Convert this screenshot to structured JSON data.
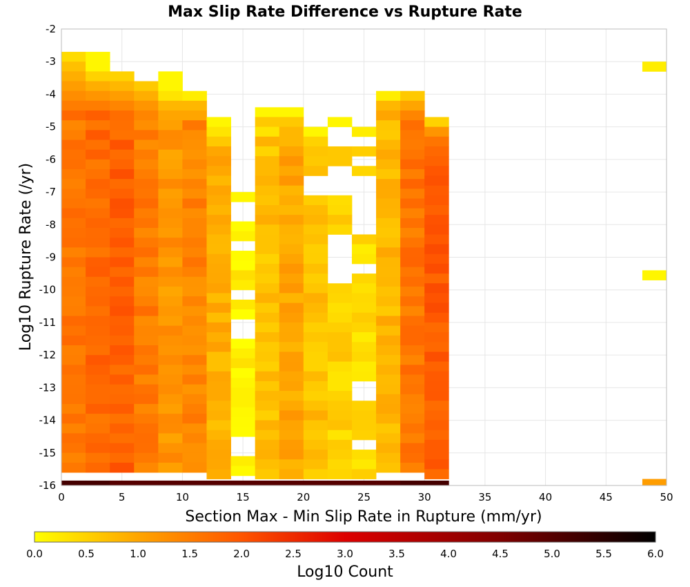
{
  "chart_data": {
    "type": "heatmap",
    "title": "Max Slip Rate Difference vs Rupture Rate",
    "xlabel": "Section Max - Min Slip Rate in Rupture (mm/yr)",
    "ylabel": "Log10 Rupture Rate (/yr)",
    "xlim": [
      0,
      50
    ],
    "ylim": [
      -16,
      -2
    ],
    "grid": true,
    "x_ticks": [
      "0",
      "5",
      "10",
      "15",
      "20",
      "25",
      "30",
      "35",
      "40",
      "45",
      "50"
    ],
    "y_ticks": [
      "-2",
      "-3",
      "-4",
      "-5",
      "-6",
      "-7",
      "-8",
      "-9",
      "-10",
      "-11",
      "-12",
      "-13",
      "-14",
      "-15",
      "-16"
    ],
    "x_bin_width": 2,
    "y_bin_height": 0.3,
    "colorbar": {
      "label": "Log10 Count",
      "range": [
        0,
        6
      ],
      "ticks": [
        "0.0",
        "0.5",
        "1.0",
        "1.5",
        "2.0",
        "2.5",
        "3.0",
        "3.5",
        "4.0",
        "4.5",
        "5.0",
        "5.5",
        "6.0"
      ],
      "stops": [
        {
          "v": 0.0,
          "color": "#ffff00"
        },
        {
          "v": 1.0,
          "color": "#ffa500"
        },
        {
          "v": 2.0,
          "color": "#ff5500"
        },
        {
          "v": 3.0,
          "color": "#dd0000"
        },
        {
          "v": 4.5,
          "color": "#800000"
        },
        {
          "v": 6.0,
          "color": "#000000"
        }
      ]
    },
    "columns": [
      {
        "x0": 0,
        "y_top": -2.7,
        "lows": [],
        "base": 1.55,
        "top": [
          0.4,
          0.7,
          0.9,
          1.1,
          1.3,
          1.5
        ],
        "bottom": 5.2
      },
      {
        "x0": 2,
        "y_top": -2.7,
        "lows": [],
        "base": 1.75,
        "top": [
          0.1,
          0.1,
          0.5,
          0.9,
          1.2,
          1.5
        ],
        "bottom": 5.2
      },
      {
        "x0": 4,
        "y_top": -3.3,
        "lows": [],
        "base": 1.85,
        "top": [
          0.5,
          0.8,
          1.1,
          1.4,
          1.7
        ],
        "bottom": 5.0
      },
      {
        "x0": 6,
        "y_top": -3.6,
        "lows": [],
        "base": 1.5,
        "top": [
          0.6,
          0.9,
          1.2,
          1.4
        ],
        "bottom": 5.0
      },
      {
        "x0": 8,
        "y_top": -3.3,
        "lows": [],
        "base": 1.2,
        "top": [
          0.1,
          0.1,
          0.3,
          0.8,
          1.0
        ],
        "bottom": 5.0
      },
      {
        "x0": 10,
        "y_top": -3.9,
        "lows": [],
        "base": 1.4,
        "top": [
          0.2,
          0.8,
          1.0
        ],
        "bottom": 5.0
      },
      {
        "x0": 12,
        "y_top": -4.7,
        "lows": [],
        "base": 0.9,
        "top": [
          0.1,
          0.3,
          0.6
        ],
        "bottom": 5.0
      },
      {
        "x0": 14,
        "y_top": -7.0,
        "lows": [
          [
            -7.3,
            -7.9
          ],
          [
            -8.5,
            -8.9
          ],
          [
            -10.0,
            -10.3
          ],
          [
            -11.0,
            -11.4
          ],
          [
            -13.3,
            -13.4
          ],
          [
            -14.5,
            -15.2
          ]
        ],
        "base": 0.2,
        "top": [
          0.1
        ],
        "bottom": 5.0
      },
      {
        "x0": 16,
        "y_top": -4.4,
        "lows": [],
        "base": 0.7,
        "top": [
          0.1,
          0.6,
          0.3
        ],
        "bottom": 5.0
      },
      {
        "x0": 18,
        "y_top": -4.4,
        "lows": [],
        "base": 1.0,
        "top": [
          0.1,
          0.6,
          0.8
        ],
        "bottom": 5.0
      },
      {
        "x0": 20,
        "y_top": -5.0,
        "lows": [
          [
            -6.4,
            -7.0
          ]
        ],
        "base": 0.7,
        "top": [
          0.1,
          0.5
        ],
        "bottom": 5.0
      },
      {
        "x0": 22,
        "y_top": -4.7,
        "lows": [
          [
            -5.0,
            -5.6
          ],
          [
            -6.2,
            -7.2
          ],
          [
            -8.2,
            -9.8
          ]
        ],
        "base": 0.5,
        "top": [
          0.1
        ],
        "bottom": 5.0
      },
      {
        "x0": 24,
        "y_top": -5.0,
        "lows": [
          [
            -5.3,
            -5.6
          ],
          [
            -5.9,
            -6.1
          ],
          [
            -6.4,
            -8.2
          ],
          [
            -9.3,
            -9.6
          ],
          [
            -12.7,
            -13.4
          ],
          [
            -14.5,
            -14.8
          ]
        ],
        "base": 0.4,
        "top": [
          0.2
        ],
        "bottom": 5.0
      },
      {
        "x0": 26,
        "y_top": -3.9,
        "lows": [],
        "base": 0.8,
        "top": [
          0.2,
          0.8,
          1.0
        ],
        "bottom": 5.0
      },
      {
        "x0": 28,
        "y_top": -3.9,
        "lows": [],
        "base": 1.6,
        "top": [
          0.6,
          1.0,
          1.4,
          1.7
        ],
        "bottom": 5.2
      },
      {
        "x0": 30,
        "y_top": -4.7,
        "lows": [],
        "base": 1.9,
        "top": [
          0.5,
          1.2,
          1.6
        ],
        "bottom": 5.2
      },
      {
        "x0": 48,
        "cells": [
          [
            -3.0,
            -3.3,
            0.2
          ],
          [
            -9.4,
            -9.7,
            0.1
          ],
          [
            -15.8,
            -16.0,
            1.1
          ]
        ]
      }
    ]
  }
}
